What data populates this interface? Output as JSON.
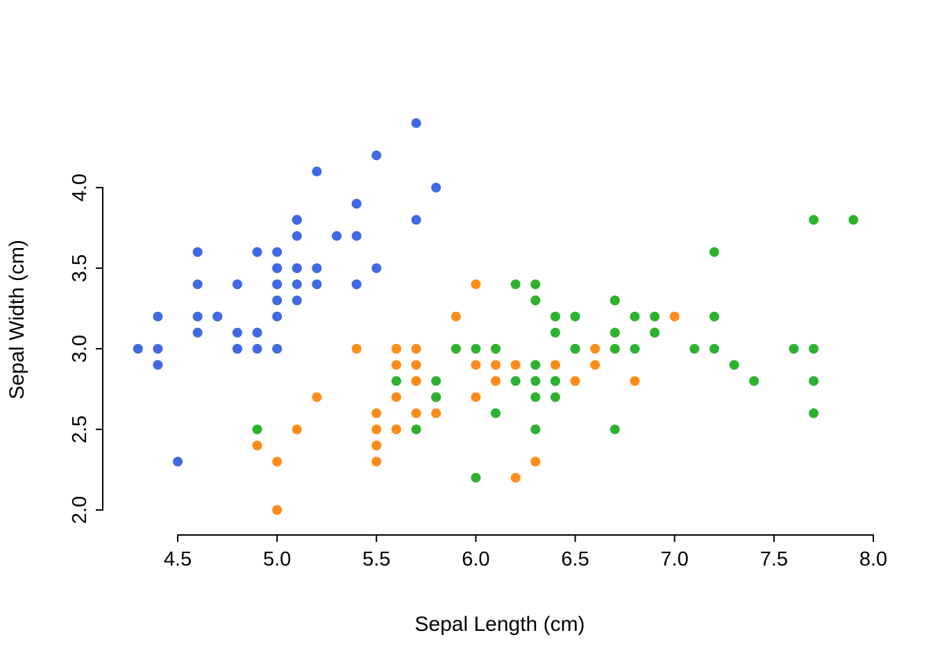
{
  "figure": {
    "xlabel": "Sepal Length (cm)",
    "ylabel": "Sepal Width (cm)"
  },
  "chart_data": {
    "type": "scatter",
    "title": "",
    "xlabel": "Sepal Length (cm)",
    "ylabel": "Sepal Width (cm)",
    "xlim": [
      4.5,
      8.0
    ],
    "ylim": [
      2.0,
      4.0
    ],
    "xtick_values": [
      4.5,
      5.0,
      5.5,
      6.0,
      6.5,
      7.0,
      7.5,
      8.0
    ],
    "xtick_labels": [
      "4.5",
      "5.0",
      "5.5",
      "6.0",
      "6.5",
      "7.0",
      "7.5",
      "8.0"
    ],
    "ytick_values": [
      2.0,
      2.5,
      3.0,
      3.5,
      4.0
    ],
    "ytick_labels": [
      "2.0",
      "2.5",
      "3.0",
      "3.5",
      "4.0"
    ],
    "grid": false,
    "legend": "none",
    "point_radius_px": 7,
    "series": [
      {
        "name": "blue",
        "color": "#4169E1",
        "points": [
          [
            5.1,
            3.5
          ],
          [
            4.9,
            3.0
          ],
          [
            4.7,
            3.2
          ],
          [
            4.6,
            3.1
          ],
          [
            5.0,
            3.6
          ],
          [
            5.4,
            3.9
          ],
          [
            4.6,
            3.4
          ],
          [
            5.0,
            3.4
          ],
          [
            4.4,
            2.9
          ],
          [
            4.9,
            3.1
          ],
          [
            5.4,
            3.7
          ],
          [
            4.8,
            3.4
          ],
          [
            4.8,
            3.0
          ],
          [
            4.3,
            3.0
          ],
          [
            5.8,
            4.0
          ],
          [
            5.7,
            4.4
          ],
          [
            5.4,
            3.9
          ],
          [
            5.1,
            3.5
          ],
          [
            5.7,
            3.8
          ],
          [
            5.1,
            3.8
          ],
          [
            5.4,
            3.4
          ],
          [
            5.1,
            3.7
          ],
          [
            4.6,
            3.6
          ],
          [
            5.1,
            3.3
          ],
          [
            4.8,
            3.4
          ],
          [
            5.0,
            3.0
          ],
          [
            5.0,
            3.4
          ],
          [
            5.2,
            3.5
          ],
          [
            5.2,
            3.4
          ],
          [
            4.7,
            3.2
          ],
          [
            4.8,
            3.1
          ],
          [
            5.4,
            3.4
          ],
          [
            5.2,
            4.1
          ],
          [
            5.5,
            4.2
          ],
          [
            4.9,
            3.1
          ],
          [
            5.0,
            3.2
          ],
          [
            5.5,
            3.5
          ],
          [
            4.9,
            3.6
          ],
          [
            4.4,
            3.0
          ],
          [
            5.1,
            3.4
          ],
          [
            5.0,
            3.5
          ],
          [
            4.5,
            2.3
          ],
          [
            4.4,
            3.2
          ],
          [
            5.0,
            3.5
          ],
          [
            5.1,
            3.8
          ],
          [
            4.8,
            3.0
          ],
          [
            5.1,
            3.8
          ],
          [
            4.6,
            3.2
          ],
          [
            5.3,
            3.7
          ],
          [
            5.0,
            3.3
          ]
        ]
      },
      {
        "name": "orange",
        "color": "#FF8C1A",
        "points": [
          [
            7.0,
            3.2
          ],
          [
            6.4,
            3.2
          ],
          [
            6.9,
            3.1
          ],
          [
            5.5,
            2.3
          ],
          [
            6.5,
            2.8
          ],
          [
            5.7,
            2.8
          ],
          [
            6.3,
            3.3
          ],
          [
            4.9,
            2.4
          ],
          [
            6.6,
            2.9
          ],
          [
            5.2,
            2.7
          ],
          [
            5.0,
            2.0
          ],
          [
            5.9,
            3.0
          ],
          [
            6.0,
            2.2
          ],
          [
            6.1,
            2.9
          ],
          [
            5.6,
            2.9
          ],
          [
            6.7,
            3.1
          ],
          [
            5.6,
            3.0
          ],
          [
            5.8,
            2.7
          ],
          [
            6.2,
            2.2
          ],
          [
            5.6,
            2.5
          ],
          [
            5.9,
            3.2
          ],
          [
            6.1,
            2.8
          ],
          [
            6.3,
            2.5
          ],
          [
            6.1,
            2.8
          ],
          [
            6.4,
            2.9
          ],
          [
            6.6,
            3.0
          ],
          [
            6.8,
            2.8
          ],
          [
            6.7,
            3.0
          ],
          [
            6.0,
            2.9
          ],
          [
            5.7,
            2.6
          ],
          [
            5.5,
            2.4
          ],
          [
            5.5,
            2.4
          ],
          [
            5.8,
            2.7
          ],
          [
            6.0,
            2.7
          ],
          [
            5.4,
            3.0
          ],
          [
            6.0,
            3.4
          ],
          [
            6.7,
            3.1
          ],
          [
            6.3,
            2.3
          ],
          [
            5.6,
            3.0
          ],
          [
            5.5,
            2.5
          ],
          [
            5.5,
            2.6
          ],
          [
            6.1,
            3.0
          ],
          [
            5.8,
            2.6
          ],
          [
            5.0,
            2.3
          ],
          [
            5.6,
            2.7
          ],
          [
            5.7,
            3.0
          ],
          [
            5.7,
            2.9
          ],
          [
            6.2,
            2.9
          ],
          [
            5.1,
            2.5
          ],
          [
            5.7,
            2.8
          ]
        ]
      },
      {
        "name": "green",
        "color": "#2DB230",
        "points": [
          [
            6.3,
            3.3
          ],
          [
            5.8,
            2.7
          ],
          [
            7.1,
            3.0
          ],
          [
            6.3,
            2.9
          ],
          [
            6.5,
            3.0
          ],
          [
            7.6,
            3.0
          ],
          [
            4.9,
            2.5
          ],
          [
            7.3,
            2.9
          ],
          [
            6.7,
            2.5
          ],
          [
            7.2,
            3.6
          ],
          [
            6.5,
            3.2
          ],
          [
            6.4,
            2.7
          ],
          [
            6.8,
            3.0
          ],
          [
            5.7,
            2.5
          ],
          [
            5.8,
            2.8
          ],
          [
            6.4,
            3.2
          ],
          [
            6.5,
            3.0
          ],
          [
            7.7,
            3.8
          ],
          [
            7.7,
            2.6
          ],
          [
            6.0,
            2.2
          ],
          [
            6.9,
            3.2
          ],
          [
            5.6,
            2.8
          ],
          [
            7.7,
            2.8
          ],
          [
            6.3,
            2.7
          ],
          [
            6.7,
            3.3
          ],
          [
            7.2,
            3.2
          ],
          [
            6.2,
            2.8
          ],
          [
            6.1,
            3.0
          ],
          [
            6.4,
            2.8
          ],
          [
            7.2,
            3.0
          ],
          [
            7.4,
            2.8
          ],
          [
            7.9,
            3.8
          ],
          [
            6.4,
            2.8
          ],
          [
            6.3,
            2.8
          ],
          [
            6.1,
            2.6
          ],
          [
            7.7,
            3.0
          ],
          [
            6.3,
            3.4
          ],
          [
            6.4,
            3.1
          ],
          [
            6.0,
            3.0
          ],
          [
            6.9,
            3.1
          ],
          [
            6.7,
            3.1
          ],
          [
            6.9,
            3.1
          ],
          [
            5.8,
            2.7
          ],
          [
            6.8,
            3.2
          ],
          [
            6.7,
            3.3
          ],
          [
            6.7,
            3.0
          ],
          [
            6.3,
            2.5
          ],
          [
            6.5,
            3.0
          ],
          [
            6.2,
            3.4
          ],
          [
            5.9,
            3.0
          ]
        ]
      }
    ]
  }
}
